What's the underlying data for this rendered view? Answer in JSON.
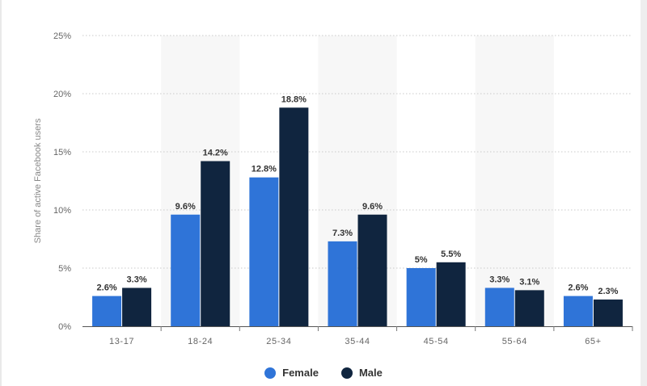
{
  "chart_data": {
    "type": "bar",
    "title": "",
    "xlabel": "",
    "ylabel": "Share of active Facebook users",
    "categories": [
      "13-17",
      "18-24",
      "25-34",
      "35-44",
      "45-54",
      "55-64",
      "65+"
    ],
    "series": [
      {
        "name": "Female",
        "color": "#2f74d8",
        "values": [
          2.6,
          9.6,
          12.8,
          7.3,
          5,
          3.3,
          2.6
        ],
        "labels": [
          "2.6%",
          "9.6%",
          "12.8%",
          "7.3%",
          "5%",
          "3.3%",
          "2.6%"
        ]
      },
      {
        "name": "Male",
        "color": "#10253f",
        "values": [
          3.3,
          14.2,
          18.8,
          9.6,
          5.5,
          3.1,
          2.3
        ],
        "labels": [
          "3.3%",
          "14.2%",
          "18.8%",
          "9.6%",
          "5.5%",
          "3.1%",
          "2.3%"
        ]
      }
    ],
    "yticks": [
      "0%",
      "5%",
      "10%",
      "15%",
      "20%",
      "25%"
    ],
    "ylim": [
      0,
      25
    ],
    "grid": true,
    "legend": "bottom-center",
    "alternate_band_color": "#f7f7f7"
  }
}
